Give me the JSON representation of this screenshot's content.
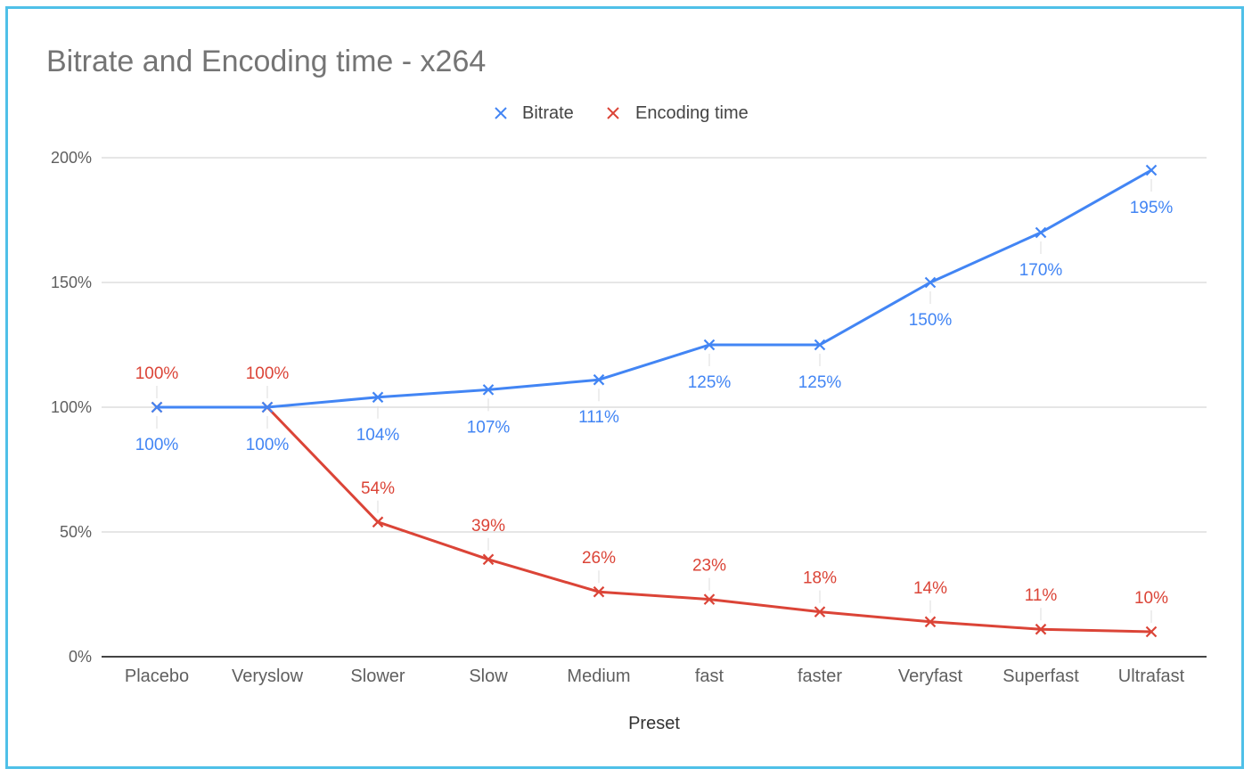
{
  "chart_data": {
    "type": "line",
    "title": "Bitrate and Encoding time - x264",
    "xlabel": "Preset",
    "ylabel": "",
    "ylim": [
      0,
      200
    ],
    "y_ticks": [
      "0%",
      "50%",
      "100%",
      "150%",
      "200%"
    ],
    "y_tick_values": [
      0,
      50,
      100,
      150,
      200
    ],
    "categories": [
      "Placebo",
      "Veryslow",
      "Slower",
      "Slow",
      "Medium",
      "fast",
      "faster",
      "Veryfast",
      "Superfast",
      "Ultrafast"
    ],
    "grid": true,
    "legend_position": "top",
    "series": [
      {
        "name": "Bitrate",
        "color": "#4285f4",
        "values": [
          100,
          100,
          104,
          107,
          111,
          125,
          125,
          150,
          170,
          195
        ],
        "labels": [
          "100%",
          "100%",
          "104%",
          "107%",
          "111%",
          "125%",
          "125%",
          "150%",
          "170%",
          "195%"
        ],
        "label_position": "below"
      },
      {
        "name": "Encoding time",
        "color": "#db4437",
        "values": [
          100,
          100,
          54,
          39,
          26,
          23,
          18,
          14,
          11,
          10
        ],
        "labels": [
          "100%",
          "100%",
          "54%",
          "39%",
          "26%",
          "23%",
          "18%",
          "14%",
          "11%",
          "10%"
        ],
        "label_position": "above"
      }
    ]
  }
}
